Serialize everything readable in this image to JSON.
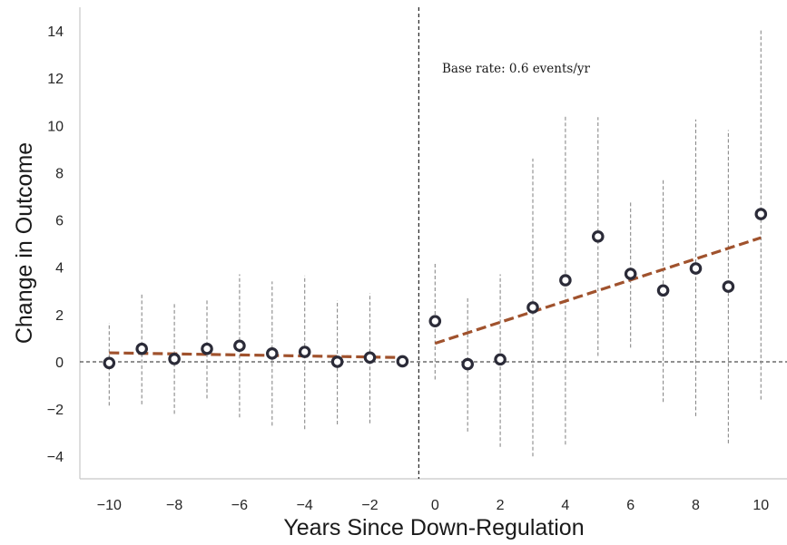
{
  "chart_data": {
    "type": "scatter",
    "title": "",
    "xlabel": "Years Since Down-Regulation",
    "ylabel": "Change in Outcome",
    "xlim": [
      -10.9,
      10.8
    ],
    "ylim": [
      -4.95,
      15
    ],
    "xticks": [
      -10,
      -8,
      -6,
      -4,
      -2,
      0,
      2,
      4,
      6,
      8,
      10
    ],
    "yticks": [
      -4,
      -2,
      0,
      2,
      4,
      6,
      8,
      10,
      12,
      14
    ],
    "grid": false,
    "annotation": "Base rate: 0.6 events/yr",
    "event_line_x": -0.5,
    "zero_line_y": 0,
    "colors": {
      "points": "#2b2b38",
      "trend": "#a0522d",
      "error_bars": "#8a8a8a",
      "reference_lines": "#111111"
    },
    "points": [
      {
        "x": -10,
        "y": -0.05,
        "lo": -1.85,
        "hi": 1.65
      },
      {
        "x": -9,
        "y": 0.55,
        "lo": -1.8,
        "hi": 2.85
      },
      {
        "x": -8,
        "y": 0.12,
        "lo": -2.2,
        "hi": 2.45
      },
      {
        "x": -7,
        "y": 0.55,
        "lo": -1.55,
        "hi": 2.6
      },
      {
        "x": -6,
        "y": 0.68,
        "lo": -2.35,
        "hi": 3.7
      },
      {
        "x": -5,
        "y": 0.35,
        "lo": -2.7,
        "hi": 3.4
      },
      {
        "x": -4,
        "y": 0.42,
        "lo": -2.85,
        "hi": 3.65
      },
      {
        "x": -3,
        "y": 0.0,
        "lo": -2.65,
        "hi": 2.6
      },
      {
        "x": -2,
        "y": 0.18,
        "lo": -2.6,
        "hi": 2.9
      },
      {
        "x": -1,
        "y": 0.02,
        "lo": 0.02,
        "hi": 0.02
      },
      {
        "x": 0,
        "y": 1.72,
        "lo": -0.75,
        "hi": 4.15
      },
      {
        "x": 1,
        "y": -0.1,
        "lo": -2.95,
        "hi": 2.7
      },
      {
        "x": 2,
        "y": 0.1,
        "lo": -3.6,
        "hi": 3.7
      },
      {
        "x": 3,
        "y": 2.3,
        "lo": -4.0,
        "hi": 8.6
      },
      {
        "x": 4,
        "y": 3.45,
        "lo": -3.5,
        "hi": 10.45
      },
      {
        "x": 5,
        "y": 5.3,
        "lo": 0.25,
        "hi": 10.35
      },
      {
        "x": 6,
        "y": 3.72,
        "lo": 0.6,
        "hi": 6.8
      },
      {
        "x": 7,
        "y": 3.02,
        "lo": -1.7,
        "hi": 7.75
      },
      {
        "x": 8,
        "y": 3.95,
        "lo": -2.3,
        "hi": 10.25
      },
      {
        "x": 9,
        "y": 3.18,
        "lo": -3.45,
        "hi": 9.8
      },
      {
        "x": 10,
        "y": 6.25,
        "lo": -1.6,
        "hi": 14.05
      }
    ],
    "trend_lines": [
      {
        "x": [
          -10,
          -1
        ],
        "y": [
          0.38,
          0.18
        ]
      },
      {
        "x": [
          0,
          10
        ],
        "y": [
          0.78,
          5.25
        ]
      }
    ]
  }
}
